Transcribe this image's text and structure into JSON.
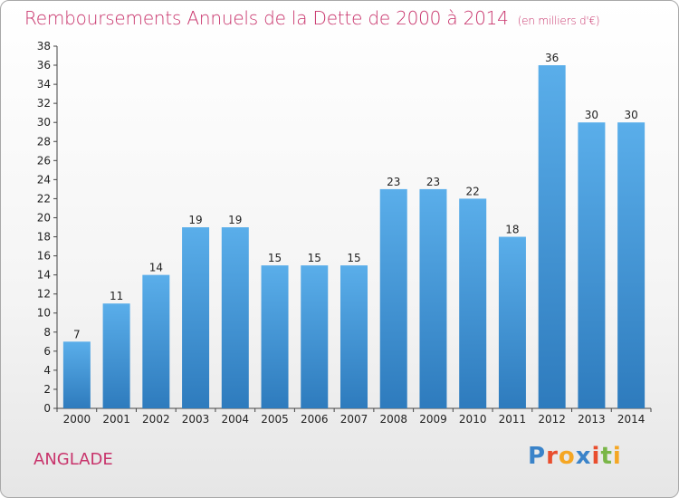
{
  "title": "Remboursements Annuels de la Dette de 2000 à 2014",
  "unit": "(en milliers d'€)",
  "commune": "ANGLADE",
  "brand": {
    "text": "Proxiti",
    "letters": [
      {
        "ch": "P",
        "color": "#3a83c9"
      },
      {
        "ch": "r",
        "color": "#e94e2e"
      },
      {
        "ch": "o",
        "color": "#f5a623"
      },
      {
        "ch": "x",
        "color": "#3a83c9"
      },
      {
        "ch": "i",
        "color": "#e94e2e"
      },
      {
        "ch": "t",
        "color": "#7ab648"
      },
      {
        "ch": "i",
        "color": "#f5a623"
      }
    ]
  },
  "colors": {
    "title": "#c8336b",
    "bar_top": "#5aaeea",
    "bar_bottom": "#2e7bbd"
  },
  "chart_data": {
    "type": "bar",
    "title": "Remboursements Annuels de la Dette de 2000 à 2014",
    "categories": [
      "2000",
      "2001",
      "2002",
      "2003",
      "2004",
      "2005",
      "2006",
      "2007",
      "2008",
      "2009",
      "2010",
      "2011",
      "2012",
      "2013",
      "2014"
    ],
    "values": [
      7,
      11,
      14,
      19,
      19,
      15,
      15,
      15,
      23,
      23,
      22,
      18,
      36,
      30,
      30
    ],
    "ylim": [
      0,
      38
    ],
    "yticks": [
      0,
      2,
      4,
      6,
      8,
      10,
      12,
      14,
      16,
      18,
      20,
      22,
      24,
      26,
      28,
      30,
      32,
      34,
      36,
      38
    ],
    "grid": false
  }
}
